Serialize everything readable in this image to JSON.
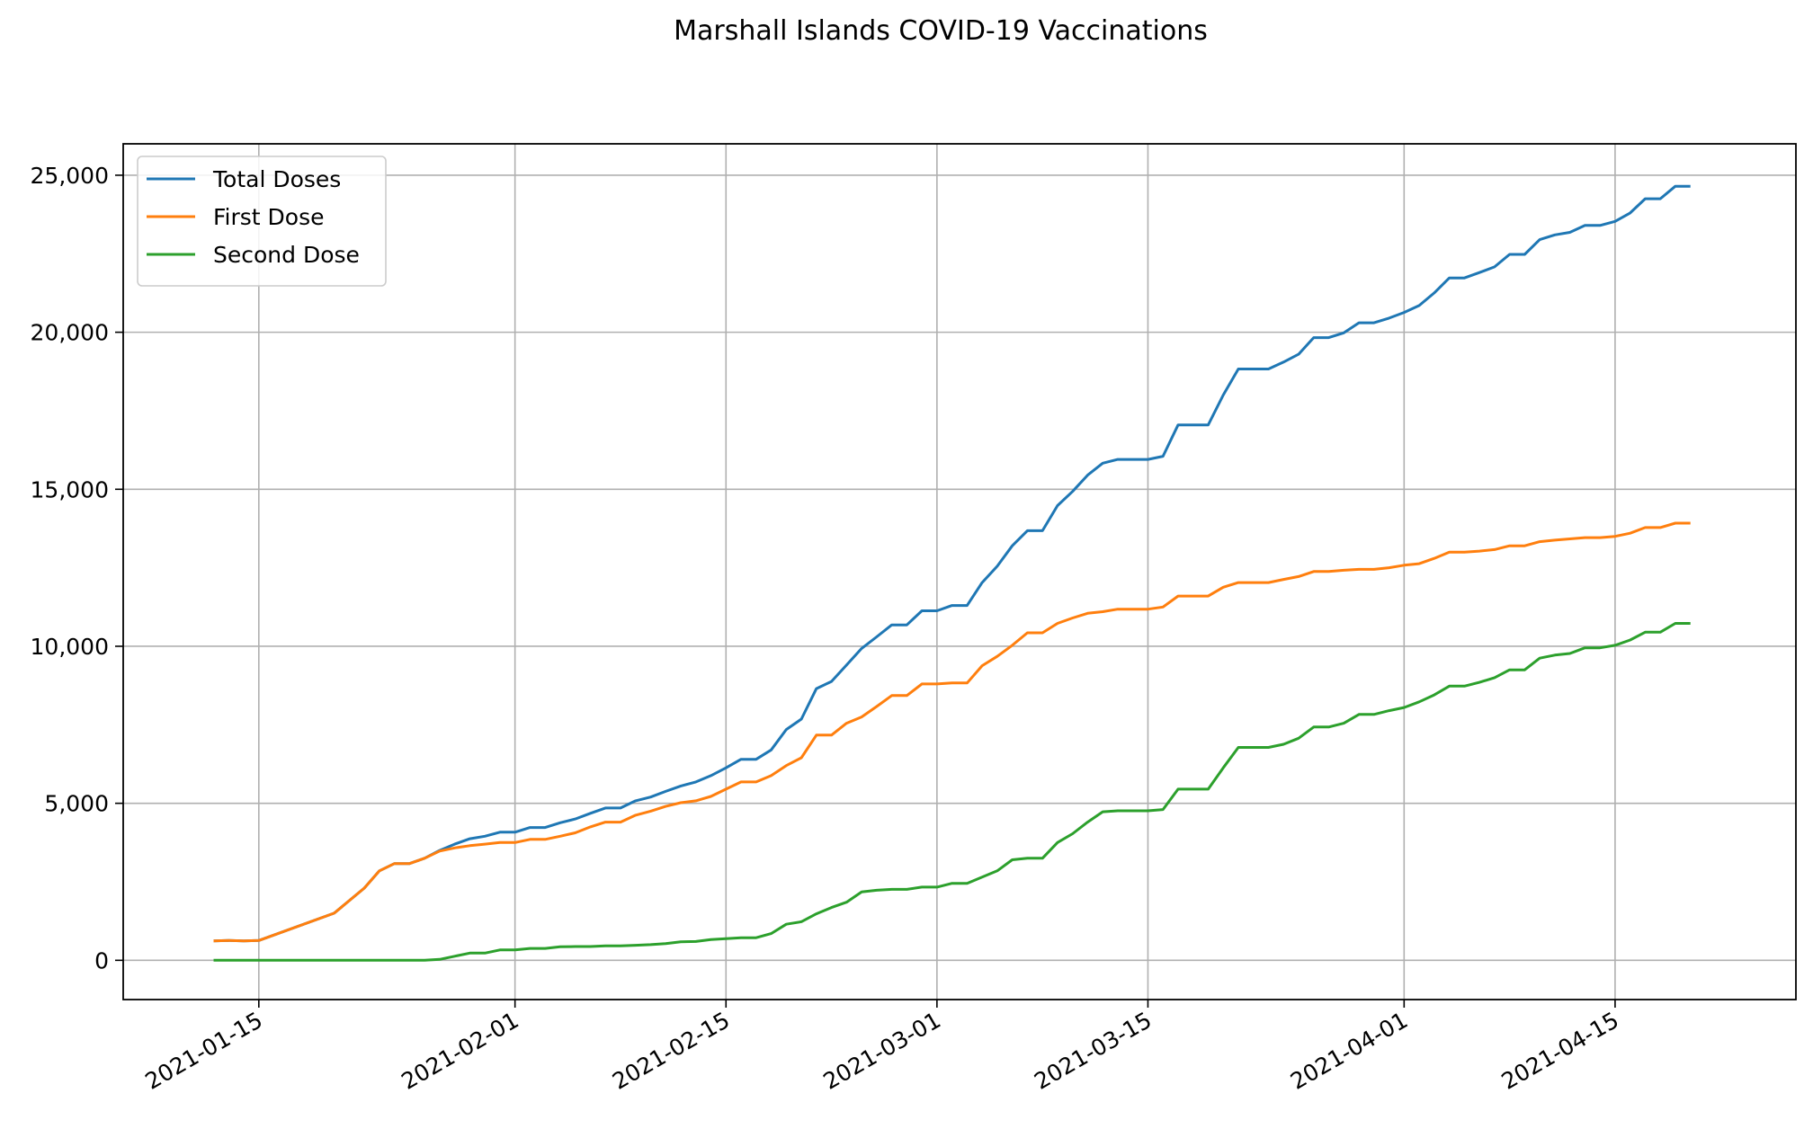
{
  "chart_data": {
    "type": "line",
    "title": "Marshall Islands COVID-19 Vaccinations",
    "xlabel": "",
    "ylabel": "",
    "x_axis": "date",
    "xlim": [
      "2021-01-06",
      "2021-04-27"
    ],
    "ylim": [
      -1250,
      26000
    ],
    "grid": true,
    "legend_position": "upper-left",
    "x_ticks": [
      "2021-01-15",
      "2021-02-01",
      "2021-02-15",
      "2021-03-01",
      "2021-03-15",
      "2021-04-01",
      "2021-04-15"
    ],
    "y_ticks": [
      0,
      5000,
      10000,
      15000,
      20000,
      25000
    ],
    "y_tick_labels": [
      "0",
      "5,000",
      "10,000",
      "15,000",
      "20,000",
      "25,000"
    ],
    "series": [
      {
        "name": "Total Doses",
        "color": "#1f77b4",
        "points": [
          [
            "2021-01-12",
            620
          ],
          [
            "2021-01-13",
            630
          ],
          [
            "2021-01-14",
            620
          ],
          [
            "2021-01-15",
            630
          ],
          [
            "2021-01-20",
            1500
          ],
          [
            "2021-01-22",
            2300
          ],
          [
            "2021-01-23",
            2850
          ],
          [
            "2021-01-24",
            3080
          ],
          [
            "2021-01-25",
            3080
          ],
          [
            "2021-01-26",
            3250
          ],
          [
            "2021-01-27",
            3500
          ],
          [
            "2021-01-28",
            3700
          ],
          [
            "2021-01-29",
            3870
          ],
          [
            "2021-01-30",
            3950
          ],
          [
            "2021-01-31",
            4080
          ],
          [
            "2021-02-01",
            4080
          ],
          [
            "2021-02-02",
            4230
          ],
          [
            "2021-02-03",
            4230
          ],
          [
            "2021-02-04",
            4380
          ],
          [
            "2021-02-05",
            4500
          ],
          [
            "2021-02-06",
            4680
          ],
          [
            "2021-02-07",
            4850
          ],
          [
            "2021-02-08",
            4850
          ],
          [
            "2021-02-09",
            5080
          ],
          [
            "2021-02-10",
            5200
          ],
          [
            "2021-02-11",
            5380
          ],
          [
            "2021-02-12",
            5550
          ],
          [
            "2021-02-13",
            5680
          ],
          [
            "2021-02-14",
            5880
          ],
          [
            "2021-02-15",
            6130
          ],
          [
            "2021-02-16",
            6400
          ],
          [
            "2021-02-17",
            6400
          ],
          [
            "2021-02-18",
            6700
          ],
          [
            "2021-02-19",
            7350
          ],
          [
            "2021-02-20",
            7680
          ],
          [
            "2021-02-21",
            8650
          ],
          [
            "2021-02-22",
            8880
          ],
          [
            "2021-02-23",
            9400
          ],
          [
            "2021-02-24",
            9930
          ],
          [
            "2021-02-25",
            10300
          ],
          [
            "2021-02-26",
            10680
          ],
          [
            "2021-02-27",
            10680
          ],
          [
            "2021-02-28",
            11130
          ],
          [
            "2021-03-01",
            11130
          ],
          [
            "2021-03-02",
            11300
          ],
          [
            "2021-03-03",
            11300
          ],
          [
            "2021-03-04",
            12030
          ],
          [
            "2021-03-05",
            12550
          ],
          [
            "2021-03-06",
            13200
          ],
          [
            "2021-03-07",
            13680
          ],
          [
            "2021-03-08",
            13680
          ],
          [
            "2021-03-09",
            14480
          ],
          [
            "2021-03-10",
            14930
          ],
          [
            "2021-03-11",
            15450
          ],
          [
            "2021-03-12",
            15830
          ],
          [
            "2021-03-13",
            15950
          ],
          [
            "2021-03-14",
            15950
          ],
          [
            "2021-03-15",
            15950
          ],
          [
            "2021-03-16",
            16050
          ],
          [
            "2021-03-17",
            17050
          ],
          [
            "2021-03-18",
            17050
          ],
          [
            "2021-03-19",
            17050
          ],
          [
            "2021-03-20",
            18000
          ],
          [
            "2021-03-21",
            18830
          ],
          [
            "2021-03-22",
            18830
          ],
          [
            "2021-03-23",
            18830
          ],
          [
            "2021-03-24",
            19050
          ],
          [
            "2021-03-25",
            19300
          ],
          [
            "2021-03-26",
            19830
          ],
          [
            "2021-03-27",
            19830
          ],
          [
            "2021-03-28",
            19980
          ],
          [
            "2021-03-29",
            20300
          ],
          [
            "2021-03-30",
            20300
          ],
          [
            "2021-03-31",
            20450
          ],
          [
            "2021-04-01",
            20630
          ],
          [
            "2021-04-02",
            20850
          ],
          [
            "2021-04-03",
            21250
          ],
          [
            "2021-04-04",
            21730
          ],
          [
            "2021-04-05",
            21730
          ],
          [
            "2021-04-06",
            21900
          ],
          [
            "2021-04-07",
            22080
          ],
          [
            "2021-04-08",
            22480
          ],
          [
            "2021-04-09",
            22480
          ],
          [
            "2021-04-10",
            22950
          ],
          [
            "2021-04-11",
            23100
          ],
          [
            "2021-04-12",
            23180
          ],
          [
            "2021-04-13",
            23400
          ],
          [
            "2021-04-14",
            23400
          ],
          [
            "2021-04-15",
            23530
          ],
          [
            "2021-04-16",
            23800
          ],
          [
            "2021-04-17",
            24250
          ],
          [
            "2021-04-18",
            24250
          ],
          [
            "2021-04-19",
            24650
          ],
          [
            "2021-04-20",
            24650
          ]
        ]
      },
      {
        "name": "First Dose",
        "color": "#ff7f0e",
        "points": [
          [
            "2021-01-12",
            620
          ],
          [
            "2021-01-13",
            630
          ],
          [
            "2021-01-14",
            620
          ],
          [
            "2021-01-15",
            630
          ],
          [
            "2021-01-20",
            1500
          ],
          [
            "2021-01-22",
            2300
          ],
          [
            "2021-01-23",
            2850
          ],
          [
            "2021-01-24",
            3080
          ],
          [
            "2021-01-25",
            3080
          ],
          [
            "2021-01-26",
            3250
          ],
          [
            "2021-01-27",
            3480
          ],
          [
            "2021-01-28",
            3580
          ],
          [
            "2021-01-29",
            3650
          ],
          [
            "2021-01-30",
            3700
          ],
          [
            "2021-01-31",
            3750
          ],
          [
            "2021-02-01",
            3750
          ],
          [
            "2021-02-02",
            3850
          ],
          [
            "2021-02-03",
            3850
          ],
          [
            "2021-02-04",
            3950
          ],
          [
            "2021-02-05",
            4060
          ],
          [
            "2021-02-06",
            4250
          ],
          [
            "2021-02-07",
            4400
          ],
          [
            "2021-02-08",
            4400
          ],
          [
            "2021-02-09",
            4620
          ],
          [
            "2021-02-10",
            4750
          ],
          [
            "2021-02-11",
            4900
          ],
          [
            "2021-02-12",
            5020
          ],
          [
            "2021-02-13",
            5080
          ],
          [
            "2021-02-14",
            5220
          ],
          [
            "2021-02-15",
            5450
          ],
          [
            "2021-02-16",
            5680
          ],
          [
            "2021-02-17",
            5680
          ],
          [
            "2021-02-18",
            5880
          ],
          [
            "2021-02-19",
            6200
          ],
          [
            "2021-02-20",
            6450
          ],
          [
            "2021-02-21",
            7170
          ],
          [
            "2021-02-22",
            7170
          ],
          [
            "2021-02-23",
            7550
          ],
          [
            "2021-02-24",
            7750
          ],
          [
            "2021-02-25",
            8080
          ],
          [
            "2021-02-26",
            8430
          ],
          [
            "2021-02-27",
            8430
          ],
          [
            "2021-02-28",
            8800
          ],
          [
            "2021-03-01",
            8800
          ],
          [
            "2021-03-02",
            8830
          ],
          [
            "2021-03-03",
            8830
          ],
          [
            "2021-03-04",
            9380
          ],
          [
            "2021-03-05",
            9680
          ],
          [
            "2021-03-06",
            10030
          ],
          [
            "2021-03-07",
            10430
          ],
          [
            "2021-03-08",
            10430
          ],
          [
            "2021-03-09",
            10730
          ],
          [
            "2021-03-10",
            10900
          ],
          [
            "2021-03-11",
            11050
          ],
          [
            "2021-03-12",
            11100
          ],
          [
            "2021-03-13",
            11180
          ],
          [
            "2021-03-14",
            11180
          ],
          [
            "2021-03-15",
            11180
          ],
          [
            "2021-03-16",
            11250
          ],
          [
            "2021-03-17",
            11600
          ],
          [
            "2021-03-18",
            11600
          ],
          [
            "2021-03-19",
            11600
          ],
          [
            "2021-03-20",
            11880
          ],
          [
            "2021-03-21",
            12030
          ],
          [
            "2021-03-22",
            12030
          ],
          [
            "2021-03-23",
            12030
          ],
          [
            "2021-03-24",
            12130
          ],
          [
            "2021-03-25",
            12220
          ],
          [
            "2021-03-26",
            12380
          ],
          [
            "2021-03-27",
            12380
          ],
          [
            "2021-03-28",
            12420
          ],
          [
            "2021-03-29",
            12450
          ],
          [
            "2021-03-30",
            12450
          ],
          [
            "2021-03-31",
            12500
          ],
          [
            "2021-04-01",
            12580
          ],
          [
            "2021-04-02",
            12630
          ],
          [
            "2021-04-03",
            12800
          ],
          [
            "2021-04-04",
            13000
          ],
          [
            "2021-04-05",
            13000
          ],
          [
            "2021-04-06",
            13030
          ],
          [
            "2021-04-07",
            13080
          ],
          [
            "2021-04-08",
            13200
          ],
          [
            "2021-04-09",
            13200
          ],
          [
            "2021-04-10",
            13330
          ],
          [
            "2021-04-11",
            13380
          ],
          [
            "2021-04-12",
            13420
          ],
          [
            "2021-04-13",
            13460
          ],
          [
            "2021-04-14",
            13460
          ],
          [
            "2021-04-15",
            13500
          ],
          [
            "2021-04-16",
            13600
          ],
          [
            "2021-04-17",
            13780
          ],
          [
            "2021-04-18",
            13780
          ],
          [
            "2021-04-19",
            13920
          ],
          [
            "2021-04-20",
            13920
          ]
        ]
      },
      {
        "name": "Second Dose",
        "color": "#2ca02c",
        "points": [
          [
            "2021-01-12",
            0
          ],
          [
            "2021-01-15",
            0
          ],
          [
            "2021-01-25",
            0
          ],
          [
            "2021-01-26",
            0
          ],
          [
            "2021-01-27",
            30
          ],
          [
            "2021-01-28",
            130
          ],
          [
            "2021-01-29",
            230
          ],
          [
            "2021-01-30",
            230
          ],
          [
            "2021-01-31",
            330
          ],
          [
            "2021-02-01",
            330
          ],
          [
            "2021-02-02",
            380
          ],
          [
            "2021-02-03",
            380
          ],
          [
            "2021-02-04",
            430
          ],
          [
            "2021-02-05",
            440
          ],
          [
            "2021-02-06",
            440
          ],
          [
            "2021-02-07",
            460
          ],
          [
            "2021-02-08",
            460
          ],
          [
            "2021-02-09",
            480
          ],
          [
            "2021-02-10",
            500
          ],
          [
            "2021-02-11",
            530
          ],
          [
            "2021-02-12",
            590
          ],
          [
            "2021-02-13",
            600
          ],
          [
            "2021-02-14",
            660
          ],
          [
            "2021-02-15",
            690
          ],
          [
            "2021-02-16",
            720
          ],
          [
            "2021-02-17",
            720
          ],
          [
            "2021-02-18",
            850
          ],
          [
            "2021-02-19",
            1150
          ],
          [
            "2021-02-20",
            1230
          ],
          [
            "2021-02-21",
            1480
          ],
          [
            "2021-02-22",
            1680
          ],
          [
            "2021-02-23",
            1850
          ],
          [
            "2021-02-24",
            2180
          ],
          [
            "2021-02-25",
            2230
          ],
          [
            "2021-02-26",
            2260
          ],
          [
            "2021-02-27",
            2260
          ],
          [
            "2021-02-28",
            2330
          ],
          [
            "2021-03-01",
            2330
          ],
          [
            "2021-03-02",
            2450
          ],
          [
            "2021-03-03",
            2450
          ],
          [
            "2021-03-04",
            2650
          ],
          [
            "2021-03-05",
            2850
          ],
          [
            "2021-03-06",
            3200
          ],
          [
            "2021-03-07",
            3250
          ],
          [
            "2021-03-08",
            3250
          ],
          [
            "2021-03-09",
            3750
          ],
          [
            "2021-03-10",
            4030
          ],
          [
            "2021-03-11",
            4400
          ],
          [
            "2021-03-12",
            4730
          ],
          [
            "2021-03-13",
            4760
          ],
          [
            "2021-03-14",
            4760
          ],
          [
            "2021-03-15",
            4760
          ],
          [
            "2021-03-16",
            4800
          ],
          [
            "2021-03-17",
            5450
          ],
          [
            "2021-03-18",
            5450
          ],
          [
            "2021-03-19",
            5450
          ],
          [
            "2021-03-20",
            6130
          ],
          [
            "2021-03-21",
            6780
          ],
          [
            "2021-03-22",
            6780
          ],
          [
            "2021-03-23",
            6780
          ],
          [
            "2021-03-24",
            6880
          ],
          [
            "2021-03-25",
            7070
          ],
          [
            "2021-03-26",
            7430
          ],
          [
            "2021-03-27",
            7430
          ],
          [
            "2021-03-28",
            7550
          ],
          [
            "2021-03-29",
            7830
          ],
          [
            "2021-03-30",
            7830
          ],
          [
            "2021-03-31",
            7950
          ],
          [
            "2021-04-01",
            8050
          ],
          [
            "2021-04-02",
            8230
          ],
          [
            "2021-04-03",
            8450
          ],
          [
            "2021-04-04",
            8730
          ],
          [
            "2021-04-05",
            8730
          ],
          [
            "2021-04-06",
            8850
          ],
          [
            "2021-04-07",
            9000
          ],
          [
            "2021-04-08",
            9250
          ],
          [
            "2021-04-09",
            9250
          ],
          [
            "2021-04-10",
            9620
          ],
          [
            "2021-04-11",
            9720
          ],
          [
            "2021-04-12",
            9770
          ],
          [
            "2021-04-13",
            9950
          ],
          [
            "2021-04-14",
            9950
          ],
          [
            "2021-04-15",
            10030
          ],
          [
            "2021-04-16",
            10200
          ],
          [
            "2021-04-17",
            10450
          ],
          [
            "2021-04-18",
            10450
          ],
          [
            "2021-04-19",
            10730
          ],
          [
            "2021-04-20",
            10730
          ]
        ]
      }
    ]
  }
}
